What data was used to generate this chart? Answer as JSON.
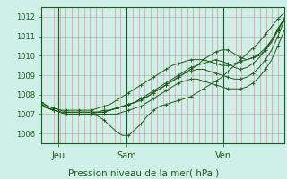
{
  "title": "Pression niveau de la mer( hPa )",
  "bg_color": "#cff0e8",
  "plot_bg_color": "#cff0e8",
  "line_color": "#1a5c1a",
  "vline_color": "#1a5c1a",
  "ylim": [
    1005.5,
    1012.5
  ],
  "xlim": [
    0,
    1
  ],
  "yticks": [
    1006,
    1007,
    1008,
    1009,
    1010,
    1011,
    1012
  ],
  "day_labels": [
    "Jeu",
    "Sam",
    "Ven"
  ],
  "day_positions": [
    0.07,
    0.35,
    0.75
  ],
  "series": [
    [
      1007.4,
      1007.3,
      1007.2,
      1007.1,
      1007.0,
      1007.0,
      1007.0,
      1007.0,
      1007.0,
      1006.9,
      1006.7,
      1006.4,
      1006.1,
      1005.9,
      1005.9,
      1006.2,
      1006.5,
      1006.9,
      1007.2,
      1007.4,
      1007.5,
      1007.6,
      1007.7,
      1007.8,
      1007.9,
      1008.1,
      1008.3,
      1008.5,
      1008.7,
      1008.9,
      1009.2,
      1009.5,
      1009.8,
      1010.1,
      1010.4,
      1010.7,
      1011.1,
      1011.5,
      1011.9,
      1012.2
    ],
    [
      1007.6,
      1007.4,
      1007.3,
      1007.2,
      1007.1,
      1007.1,
      1007.1,
      1007.1,
      1007.1,
      1007.1,
      1007.1,
      1007.2,
      1007.3,
      1007.4,
      1007.5,
      1007.6,
      1007.7,
      1007.9,
      1008.1,
      1008.3,
      1008.5,
      1008.7,
      1008.9,
      1009.1,
      1009.3,
      1009.5,
      1009.8,
      1010.0,
      1010.2,
      1010.3,
      1010.3,
      1010.1,
      1009.9,
      1009.8,
      1009.9,
      1010.0,
      1010.3,
      1010.7,
      1011.3,
      1011.9
    ],
    [
      1007.5,
      1007.3,
      1007.2,
      1007.1,
      1007.1,
      1007.1,
      1007.1,
      1007.1,
      1007.1,
      1007.1,
      1007.2,
      1007.2,
      1007.3,
      1007.4,
      1007.5,
      1007.6,
      1007.8,
      1008.0,
      1008.2,
      1008.4,
      1008.6,
      1008.8,
      1009.0,
      1009.2,
      1009.4,
      1009.5,
      1009.6,
      1009.7,
      1009.8,
      1009.7,
      1009.6,
      1009.4,
      1009.3,
      1009.4,
      1009.6,
      1009.9,
      1010.3,
      1010.8,
      1011.4,
      1011.9
    ],
    [
      1007.5,
      1007.3,
      1007.2,
      1007.1,
      1007.0,
      1007.0,
      1007.0,
      1007.0,
      1007.0,
      1007.1,
      1007.1,
      1007.2,
      1007.3,
      1007.4,
      1007.5,
      1007.6,
      1007.8,
      1007.9,
      1008.1,
      1008.3,
      1008.5,
      1008.7,
      1008.9,
      1009.1,
      1009.2,
      1009.3,
      1009.3,
      1009.2,
      1009.1,
      1009.0,
      1008.9,
      1008.8,
      1008.8,
      1008.9,
      1009.1,
      1009.4,
      1009.8,
      1010.3,
      1011.0,
      1011.8
    ],
    [
      1007.5,
      1007.3,
      1007.2,
      1007.1,
      1007.0,
      1007.0,
      1007.0,
      1007.0,
      1007.0,
      1007.0,
      1007.0,
      1007.0,
      1007.0,
      1007.1,
      1007.2,
      1007.3,
      1007.4,
      1007.6,
      1007.8,
      1008.0,
      1008.2,
      1008.4,
      1008.6,
      1008.7,
      1008.8,
      1008.8,
      1008.7,
      1008.6,
      1008.5,
      1008.4,
      1008.3,
      1008.3,
      1008.3,
      1008.4,
      1008.6,
      1008.9,
      1009.3,
      1009.8,
      1010.5,
      1011.3
    ],
    [
      1007.6,
      1007.4,
      1007.3,
      1007.2,
      1007.2,
      1007.2,
      1007.2,
      1007.2,
      1007.2,
      1007.3,
      1007.4,
      1007.5,
      1007.7,
      1007.9,
      1008.1,
      1008.3,
      1008.5,
      1008.7,
      1008.9,
      1009.1,
      1009.3,
      1009.5,
      1009.6,
      1009.7,
      1009.8,
      1009.8,
      1009.8,
      1009.7,
      1009.6,
      1009.5,
      1009.5,
      1009.6,
      1009.7,
      1009.8,
      1009.9,
      1010.1,
      1010.4,
      1010.8,
      1011.3,
      1011.9
    ]
  ],
  "n_vert_grid": 40,
  "tick_color": "#1a5c1a",
  "xlabel_color": "#1a5c1a"
}
